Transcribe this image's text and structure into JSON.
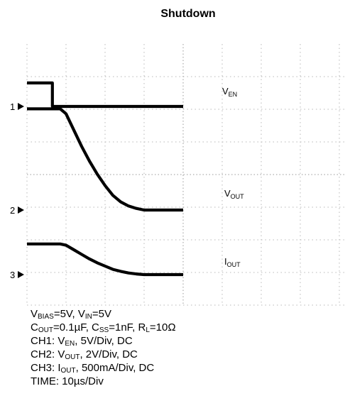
{
  "chart_data": {
    "type": "line",
    "title": "Shutdown",
    "channel_markers": [
      "1",
      "2",
      "3"
    ],
    "series": [
      {
        "channel": "1",
        "label_main": "V",
        "label_sub": "EN",
        "x": [
          0,
          6.5,
          6.5,
          40
        ],
        "y": [
          3.6,
          3.6,
          0,
          0
        ]
      },
      {
        "channel": "2",
        "label_main": "V",
        "label_sub": "OUT",
        "x": [
          0,
          8.5,
          10,
          12,
          14,
          16,
          18,
          20,
          22,
          24,
          26,
          28,
          30,
          40
        ],
        "y": [
          6.2,
          6.2,
          5.9,
          4.9,
          3.9,
          3.0,
          2.2,
          1.5,
          0.9,
          0.5,
          0.25,
          0.1,
          0.0,
          0.0
        ]
      },
      {
        "channel": "3",
        "label_main": "I",
        "label_sub": "OUT",
        "x": [
          0,
          8.5,
          10,
          12,
          14,
          16,
          18,
          20,
          22,
          24,
          26,
          28,
          30,
          40
        ],
        "y": [
          0.47,
          0.47,
          0.45,
          0.38,
          0.31,
          0.24,
          0.18,
          0.13,
          0.08,
          0.05,
          0.025,
          0.01,
          0.0,
          0.0
        ]
      }
    ],
    "notes": {
      "line1": {
        "a": "V",
        "a_sub": "BIAS",
        "b": "=5V, V",
        "b_sub": "IN",
        "c": "=5V"
      },
      "line2": {
        "a": "C",
        "a_sub": "OUT",
        "b": "=0.1µF, C",
        "b_sub": "SS",
        "c": "=1nF, R",
        "c_sub": "L",
        "d": "=10Ω"
      },
      "line3": {
        "a": "CH1: V",
        "a_sub": "EN",
        "b": ", 5V/Div, DC"
      },
      "line4": {
        "a": "CH2: V",
        "a_sub": "OUT",
        "b": ", 2V/Div, DC"
      },
      "line5": {
        "a": "CH3: I",
        "a_sub": "OUT",
        "b": ", 500mA/Div, DC"
      },
      "line6": {
        "a": "TIME: 10µs/Div"
      }
    }
  }
}
